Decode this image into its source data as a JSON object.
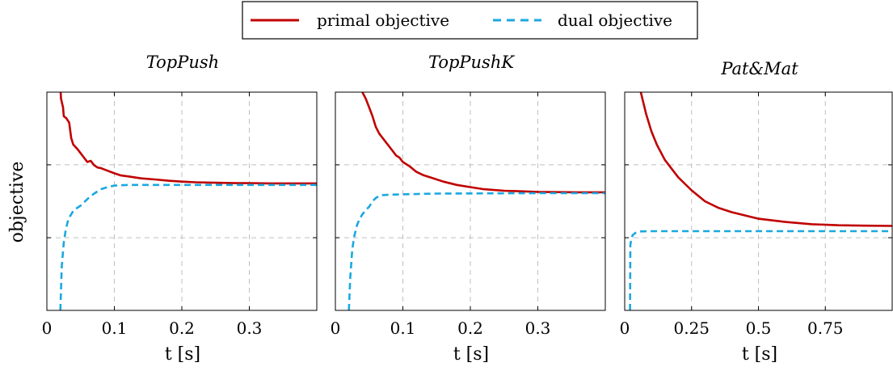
{
  "legend": {
    "primal_label": "primal objective",
    "dual_label": "dual objective"
  },
  "colors": {
    "primal": "#c00000",
    "dual": "#1ba8e0",
    "grid": "#bfbfbf"
  },
  "ylabel": "objective",
  "chart_data": [
    {
      "type": "line",
      "title": "TopPush",
      "xlabel": "t [s]",
      "xlim": [
        0,
        0.4
      ],
      "ylim": [
        0,
        1
      ],
      "xticks": [
        0,
        0.1,
        0.2,
        0.3
      ],
      "xtick_labels": [
        "0",
        "0.1",
        "0.2",
        "0.3"
      ],
      "yticks": [
        0.333,
        0.667
      ],
      "grid": true,
      "series": [
        {
          "name": "primal objective",
          "x": [
            0.02,
            0.021,
            0.024,
            0.025,
            0.029,
            0.031,
            0.033,
            0.036,
            0.039,
            0.045,
            0.05,
            0.055,
            0.06,
            0.065,
            0.07,
            0.075,
            0.08,
            0.09,
            0.1,
            0.11,
            0.12,
            0.14,
            0.16,
            0.18,
            0.2,
            0.22,
            0.25,
            0.28,
            0.3,
            0.33,
            0.36,
            0.4
          ],
          "values": [
            1.02,
            0.97,
            0.93,
            0.89,
            0.88,
            0.87,
            0.86,
            0.79,
            0.76,
            0.74,
            0.72,
            0.7,
            0.68,
            0.685,
            0.665,
            0.655,
            0.652,
            0.64,
            0.628,
            0.618,
            0.614,
            0.605,
            0.6,
            0.594,
            0.59,
            0.587,
            0.585,
            0.583,
            0.583,
            0.582,
            0.582,
            0.582
          ]
        },
        {
          "name": "dual objective",
          "x": [
            0.02,
            0.022,
            0.025,
            0.028,
            0.032,
            0.036,
            0.04,
            0.045,
            0.05,
            0.06,
            0.07,
            0.08,
            0.09,
            0.1,
            0.12,
            0.15,
            0.2,
            0.3,
            0.4
          ],
          "values": [
            0.0,
            0.2,
            0.31,
            0.37,
            0.42,
            0.44,
            0.46,
            0.47,
            0.48,
            0.51,
            0.535,
            0.555,
            0.565,
            0.572,
            0.575,
            0.575,
            0.575,
            0.575,
            0.575
          ]
        }
      ]
    },
    {
      "type": "line",
      "title": "TopPushK",
      "xlabel": "t [s]",
      "xlim": [
        0,
        0.4
      ],
      "ylim": [
        0,
        1
      ],
      "xticks": [
        0,
        0.1,
        0.2,
        0.3
      ],
      "xtick_labels": [
        "0",
        "0.1",
        "0.2",
        "0.3"
      ],
      "yticks": [
        0.333,
        0.667
      ],
      "grid": true,
      "series": [
        {
          "name": "primal objective",
          "x": [
            0.04,
            0.045,
            0.05,
            0.055,
            0.06,
            0.065,
            0.07,
            0.075,
            0.08,
            0.085,
            0.09,
            0.095,
            0.1,
            0.11,
            0.12,
            0.13,
            0.14,
            0.16,
            0.18,
            0.2,
            0.22,
            0.25,
            0.28,
            0.3,
            0.33,
            0.36,
            0.4
          ],
          "values": [
            1.0,
            0.97,
            0.93,
            0.89,
            0.84,
            0.81,
            0.79,
            0.77,
            0.75,
            0.73,
            0.71,
            0.7,
            0.68,
            0.66,
            0.635,
            0.62,
            0.61,
            0.59,
            0.575,
            0.565,
            0.555,
            0.548,
            0.545,
            0.543,
            0.542,
            0.541,
            0.541
          ]
        },
        {
          "name": "dual objective",
          "x": [
            0.02,
            0.022,
            0.025,
            0.028,
            0.032,
            0.036,
            0.04,
            0.045,
            0.05,
            0.055,
            0.06,
            0.065,
            0.07,
            0.08,
            0.1,
            0.15,
            0.2,
            0.3,
            0.4
          ],
          "values": [
            0.0,
            0.15,
            0.28,
            0.34,
            0.39,
            0.42,
            0.44,
            0.46,
            0.475,
            0.5,
            0.515,
            0.525,
            0.528,
            0.53,
            0.532,
            0.535,
            0.536,
            0.537,
            0.537
          ]
        }
      ]
    },
    {
      "type": "line",
      "title": "Pat&Mat",
      "xlabel": "t [s]",
      "xlim": [
        0,
        1
      ],
      "ylim": [
        0,
        1
      ],
      "xticks": [
        0,
        0.25,
        0.5,
        0.75
      ],
      "xtick_labels": [
        "0",
        "0.25",
        "0.5",
        "0.75"
      ],
      "yticks": [
        0.333,
        0.667
      ],
      "grid": true,
      "series": [
        {
          "name": "primal objective",
          "x": [
            0.06,
            0.08,
            0.1,
            0.12,
            0.15,
            0.2,
            0.25,
            0.3,
            0.35,
            0.4,
            0.5,
            0.6,
            0.7,
            0.8,
            0.9,
            1.0
          ],
          "values": [
            1.0,
            0.9,
            0.82,
            0.76,
            0.69,
            0.61,
            0.55,
            0.5,
            0.47,
            0.45,
            0.42,
            0.405,
            0.395,
            0.39,
            0.388,
            0.387
          ]
        },
        {
          "name": "dual objective",
          "x": [
            0.02,
            0.021,
            0.025,
            0.03,
            0.035,
            0.04,
            0.05,
            0.06,
            0.1,
            0.3,
            0.5,
            0.8,
            1.0
          ],
          "values": [
            0.0,
            0.3,
            0.33,
            0.345,
            0.35,
            0.355,
            0.36,
            0.362,
            0.363,
            0.363,
            0.363,
            0.363,
            0.363
          ]
        }
      ]
    }
  ]
}
